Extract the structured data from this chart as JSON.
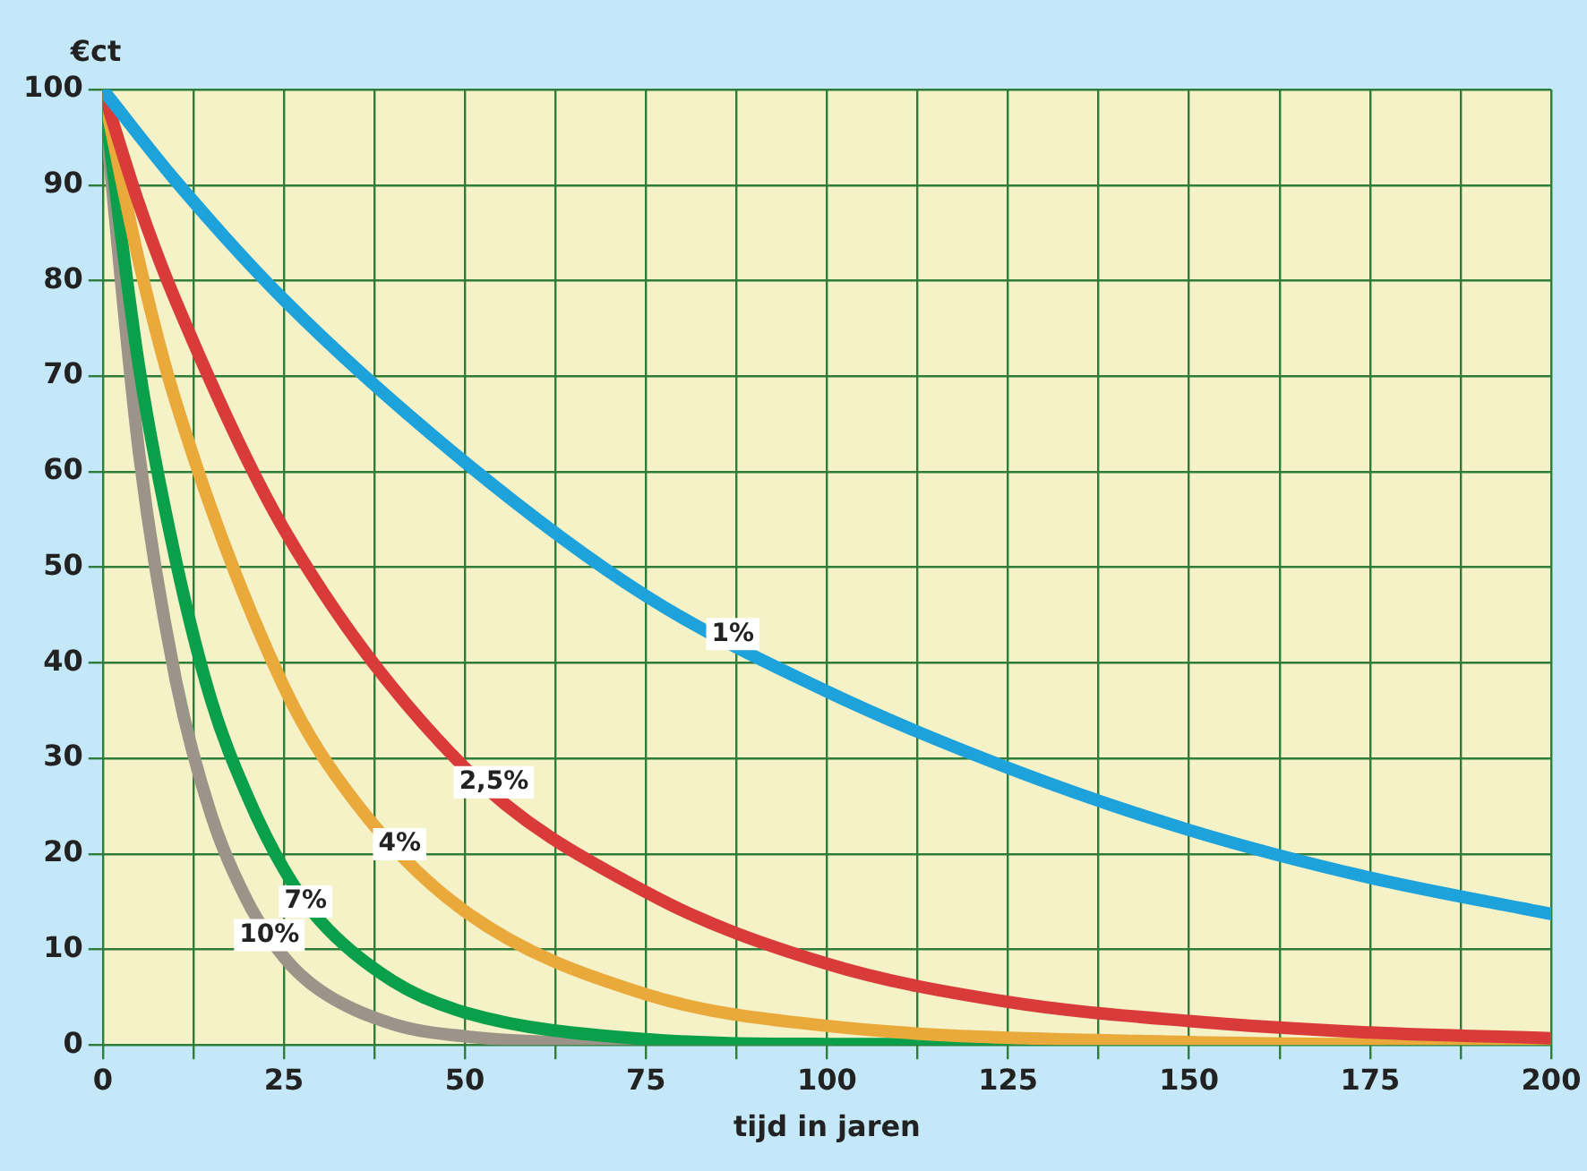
{
  "chart_data": {
    "type": "line",
    "ylabel": "€ct",
    "xlabel": "tijd in jaren",
    "xlim": [
      0,
      200
    ],
    "ylim": [
      0,
      100
    ],
    "xticks": [
      0,
      {
        "value": 12.5,
        "label": null
      },
      25,
      {
        "value": 37.5,
        "label": null
      },
      50,
      {
        "value": 62.5,
        "label": null
      },
      75,
      {
        "value": 87.5,
        "label": null
      },
      100,
      {
        "value": 112.5,
        "label": null
      },
      125,
      {
        "value": 137.5,
        "label": null
      },
      150,
      {
        "value": 162.5,
        "label": null
      },
      175,
      {
        "value": 187.5,
        "label": null
      },
      200
    ],
    "yticks": [
      0,
      10,
      20,
      30,
      40,
      50,
      60,
      70,
      80,
      90,
      100
    ],
    "grid": true,
    "legend": false,
    "marker": "none",
    "line_style": "solid",
    "series": [
      {
        "color": "#1ea2dc",
        "x": [
          0,
          10,
          25,
          50,
          75,
          100,
          125,
          150,
          175,
          200
        ],
        "values": [
          100,
          90.5,
          78,
          61,
          47,
          37,
          29,
          22.5,
          17.5,
          13.7
        ]
      },
      {
        "color": "#d93a3a",
        "x": [
          0,
          5,
          10,
          25,
          50,
          75,
          100,
          125,
          150,
          175,
          200
        ],
        "values": [
          100,
          88,
          78,
          54,
          29,
          16,
          8.5,
          4.5,
          2.5,
          1.3,
          0.7
        ]
      },
      {
        "color": "#e9a93b",
        "x": [
          0,
          5,
          10,
          25,
          35,
          50,
          75,
          100,
          150,
          200
        ],
        "values": [
          100,
          82,
          67.5,
          37.5,
          25.3,
          14,
          5.3,
          2,
          0.3,
          0
        ]
      },
      {
        "color": "#0a9f4a",
        "x": [
          0,
          5,
          10,
          15,
          20,
          25,
          30,
          40,
          50,
          75,
          100,
          200
        ],
        "values": [
          100,
          71,
          51,
          36,
          26,
          18.4,
          13,
          6.7,
          3.4,
          0.6,
          0.1,
          0
        ]
      },
      {
        "color": "#9c9488",
        "x": [
          0,
          5,
          10,
          15,
          20,
          25,
          30,
          40,
          50,
          75,
          100
        ],
        "values": [
          100,
          62,
          38.5,
          24,
          15,
          9.2,
          5.7,
          2.2,
          0.9,
          0.1,
          0
        ]
      }
    ],
    "annotations": [
      {
        "text": "1%",
        "x": 87,
        "y": 43
      },
      {
        "text": "2,5%",
        "x": 54,
        "y": 27.5
      },
      {
        "text": "4%",
        "x": 41,
        "y": 21
      },
      {
        "text": "7%",
        "x": 28,
        "y": 15
      },
      {
        "text": "10%",
        "x": 23,
        "y": 11.5
      }
    ]
  }
}
